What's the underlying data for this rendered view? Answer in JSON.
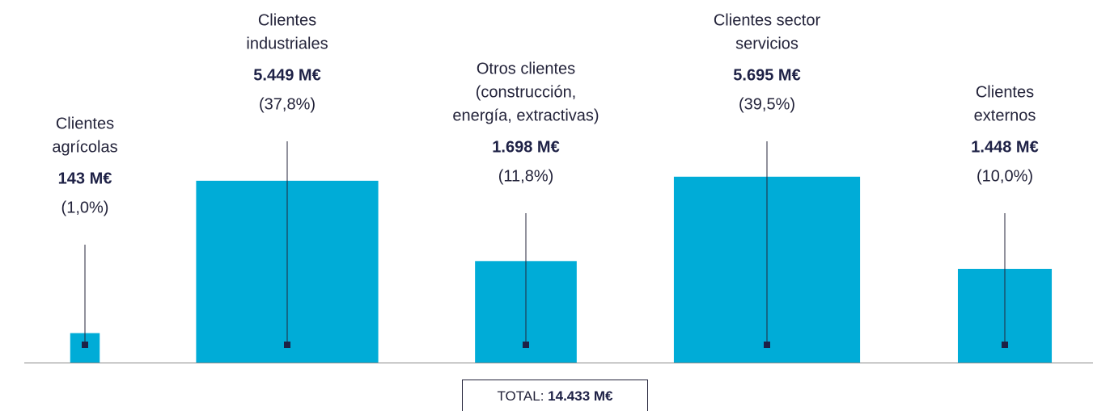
{
  "chart_data": {
    "type": "square-area",
    "categories": [
      [
        "Clientes",
        "agrícolas"
      ],
      [
        "Clientes",
        "industriales"
      ],
      [
        "Otros clientes",
        "(construcción,",
        "energía, extractivas)"
      ],
      [
        "Clientes sector",
        "servicios"
      ],
      [
        "Clientes",
        "externos"
      ]
    ],
    "values": [
      143,
      5449,
      1698,
      5695,
      1448
    ],
    "value_labels": [
      "143 M€",
      "5.449 M€",
      "1.698 M€",
      "5.695 M€",
      "1.448 M€"
    ],
    "shares": [
      1.0,
      37.8,
      11.8,
      39.5,
      10.0
    ],
    "share_labels": [
      "(1,0%)",
      "(37,8%)",
      "(11,8%)",
      "(39,5%)",
      "(10,0%)"
    ],
    "color": "#00acd7",
    "total": 14433,
    "total_label": "TOTAL:",
    "total_value_label": "14.433 M€"
  }
}
